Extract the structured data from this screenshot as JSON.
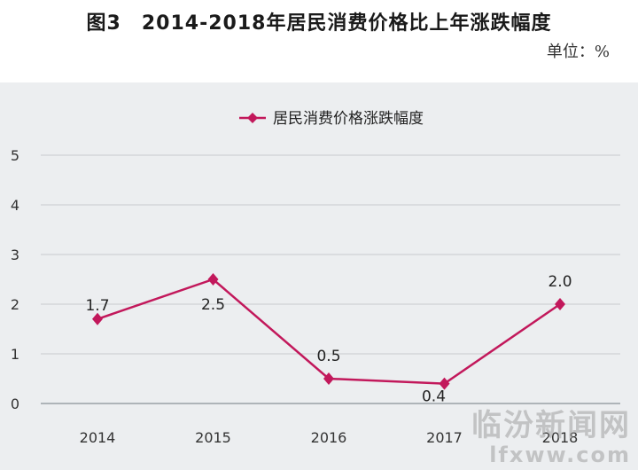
{
  "title": "图3　2014-2018年居民消费价格比上年涨跌幅度",
  "unit": "单位：%",
  "watermark": {
    "name": "临汾新闻网",
    "url": "lfxww.com"
  },
  "colors": {
    "series": "#c2185b",
    "panel": "#eceef0",
    "grid": "#c7cace"
  },
  "chart_data": {
    "type": "line",
    "title": "图3　2014-2018年居民消费价格比上年涨跌幅度",
    "categories": [
      "2014",
      "2015",
      "2016",
      "2017",
      "2018"
    ],
    "series": [
      {
        "name": "居民消费价格涨跌幅度",
        "values": [
          1.7,
          2.5,
          0.5,
          0.4,
          2.0
        ],
        "labels": [
          "1.7",
          "2.5",
          "0.5",
          "0.4",
          "2.0"
        ]
      }
    ],
    "ylim": [
      0,
      5
    ],
    "yticks": [
      "0",
      "1",
      "2",
      "3",
      "4",
      "5"
    ],
    "grid": true,
    "legend": "top-center",
    "marker": "diamond"
  }
}
